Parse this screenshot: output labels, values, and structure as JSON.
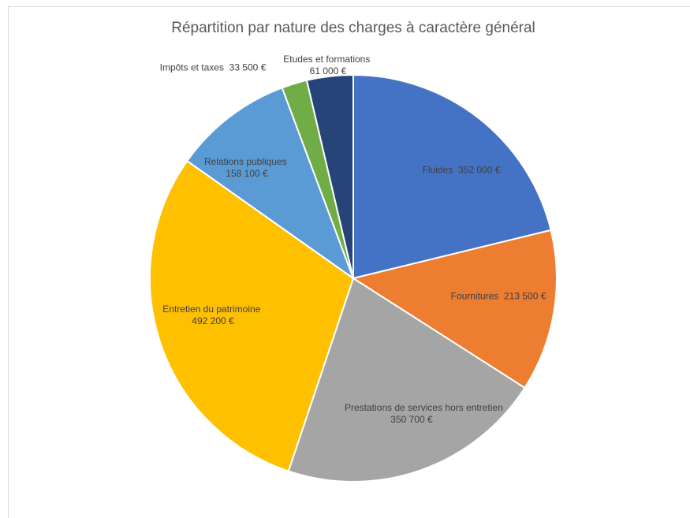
{
  "chart_data": {
    "type": "pie",
    "title": "Répartition par nature des charges à caractère général",
    "categories": [
      "Fluides",
      "Fournitures",
      "Prestations de services hors entretien",
      "Entretien du patrimoine",
      "Relations publiques",
      "Impôts et taxes",
      "Etudes et formations"
    ],
    "values": [
      352000,
      213500,
      350700,
      492200,
      158100,
      33500,
      61000
    ],
    "value_labels": [
      "352 000 €",
      "213 500 €",
      "350 700 €",
      "492 200 €",
      "158 100 €",
      "33 500 €",
      "61 000 €"
    ],
    "colors": [
      "#4472c4",
      "#ed7d31",
      "#a5a5a5",
      "#ffc000",
      "#5b9bd5",
      "#70ad47",
      "#264478"
    ]
  }
}
